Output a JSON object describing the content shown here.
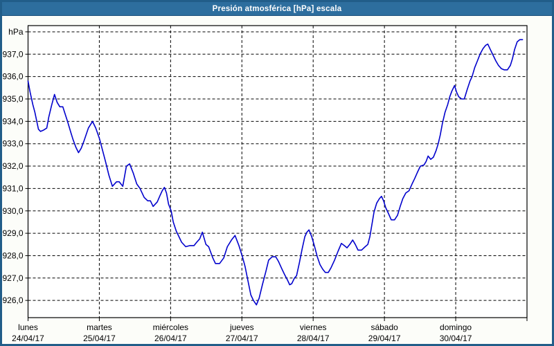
{
  "window": {
    "title": "Presión atmosférica [hPa] escala"
  },
  "colors": {
    "titlebar_bg": "#2d6e9e",
    "titlebar_text": "#ffffff",
    "window_border": "#215d89",
    "content_bg": "#fcfdf9",
    "plot_bg": "#ffffff",
    "axis": "#000000",
    "grid": "#000000",
    "line": "#0000cc",
    "label_text": "#000000"
  },
  "chart_data": {
    "type": "line",
    "title": "Presión atmosférica [hPa] escala",
    "legend": "none",
    "grid": "dashed",
    "y_axis": {
      "unit_label": "hPa",
      "tick_labels": [
        "937,0",
        "936,0",
        "935,0",
        "934,0",
        "933,0",
        "932,0",
        "931,0",
        "930,0",
        "929,0",
        "928,0",
        "927,0",
        "926,0"
      ],
      "tick_values": [
        937,
        936,
        935,
        934,
        933,
        932,
        931,
        930,
        929,
        928,
        927,
        926
      ],
      "top_gridline_value": 938,
      "ylim": [
        925.2,
        938.3
      ]
    },
    "x_axis": {
      "hours_span": 168,
      "tick_every_hours": 24,
      "days": [
        {
          "name": "lunes",
          "date": "24/04/17"
        },
        {
          "name": "martes",
          "date": "25/04/17"
        },
        {
          "name": "miércoles",
          "date": "26/04/17"
        },
        {
          "name": "jueves",
          "date": "27/04/17"
        },
        {
          "name": "viernes",
          "date": "28/04/17"
        },
        {
          "name": "sábado",
          "date": "29/04/17"
        },
        {
          "name": "domingo",
          "date": "30/04/17"
        }
      ]
    },
    "series": [
      {
        "name": "Presión atmosférica [hPa]",
        "color": "#0000cc",
        "points": [
          [
            0,
            935.8
          ],
          [
            0.7,
            935.3
          ],
          [
            1.6,
            934.75
          ],
          [
            2.3,
            934.4
          ],
          [
            3.5,
            933.65
          ],
          [
            4.2,
            933.55
          ],
          [
            5.1,
            933.6
          ],
          [
            6.3,
            933.7
          ],
          [
            7,
            934.2
          ],
          [
            7.9,
            934.7
          ],
          [
            8.9,
            935.2
          ],
          [
            9.8,
            934.85
          ],
          [
            10.7,
            934.65
          ],
          [
            11.7,
            934.65
          ],
          [
            12.3,
            934.4
          ],
          [
            13.3,
            934
          ],
          [
            14.4,
            933.5
          ],
          [
            15.1,
            933.2
          ],
          [
            16.1,
            932.85
          ],
          [
            17,
            932.6
          ],
          [
            17.9,
            932.8
          ],
          [
            18.9,
            933.15
          ],
          [
            20.3,
            933.7
          ],
          [
            21.7,
            934
          ],
          [
            22.8,
            933.7
          ],
          [
            24,
            933.25
          ],
          [
            24.9,
            932.8
          ],
          [
            26.1,
            932.2
          ],
          [
            27.2,
            931.6
          ],
          [
            28.4,
            931.1
          ],
          [
            29.8,
            931.3
          ],
          [
            30.7,
            931.3
          ],
          [
            31.9,
            931.1
          ],
          [
            33.1,
            932
          ],
          [
            34.2,
            932.1
          ],
          [
            35.4,
            931.7
          ],
          [
            36.6,
            931.2
          ],
          [
            37.7,
            931
          ],
          [
            39.1,
            930.6
          ],
          [
            40.3,
            930.45
          ],
          [
            41.2,
            930.45
          ],
          [
            42.1,
            930.2
          ],
          [
            43.5,
            930.4
          ],
          [
            44.5,
            930.7
          ],
          [
            45.2,
            930.9
          ],
          [
            45.9,
            931.05
          ],
          [
            46.6,
            930.8
          ],
          [
            47.3,
            930.3
          ],
          [
            48.2,
            930
          ],
          [
            48.9,
            929.5
          ],
          [
            49.9,
            929.1
          ],
          [
            50.8,
            928.85
          ],
          [
            51.7,
            928.6
          ],
          [
            53.1,
            928.4
          ],
          [
            54.5,
            928.45
          ],
          [
            55.9,
            928.45
          ],
          [
            56.8,
            928.6
          ],
          [
            57.8,
            928.75
          ],
          [
            58.7,
            929.05
          ],
          [
            59.9,
            928.5
          ],
          [
            60.8,
            928.4
          ],
          [
            62.2,
            927.9
          ],
          [
            63.1,
            927.65
          ],
          [
            64.5,
            927.65
          ],
          [
            65.9,
            927.9
          ],
          [
            67.1,
            928.4
          ],
          [
            68.5,
            928.7
          ],
          [
            69.7,
            928.9
          ],
          [
            71,
            928.45
          ],
          [
            72.2,
            927.95
          ],
          [
            73.1,
            927.5
          ],
          [
            74,
            926.9
          ],
          [
            75,
            926.25
          ],
          [
            75.9,
            926
          ],
          [
            76.9,
            925.8
          ],
          [
            77.8,
            926.1
          ],
          [
            78.9,
            926.7
          ],
          [
            80.1,
            927.3
          ],
          [
            81,
            927.8
          ],
          [
            82.2,
            927.95
          ],
          [
            83.4,
            927.95
          ],
          [
            84.3,
            927.75
          ],
          [
            85.5,
            927.4
          ],
          [
            86.4,
            927.15
          ],
          [
            87.4,
            926.9
          ],
          [
            88.1,
            926.7
          ],
          [
            88.8,
            926.75
          ],
          [
            89.7,
            927
          ],
          [
            90.4,
            927.1
          ],
          [
            91.3,
            927.65
          ],
          [
            92.3,
            928.3
          ],
          [
            93.2,
            928.85
          ],
          [
            93.9,
            929.05
          ],
          [
            94.6,
            929.15
          ],
          [
            95.5,
            928.85
          ],
          [
            96.4,
            928.45
          ],
          [
            97.4,
            927.95
          ],
          [
            98.3,
            927.6
          ],
          [
            99.2,
            927.4
          ],
          [
            100.1,
            927.25
          ],
          [
            101.1,
            927.25
          ],
          [
            102,
            927.45
          ],
          [
            103.2,
            927.8
          ],
          [
            104.4,
            928.2
          ],
          [
            105.5,
            928.55
          ],
          [
            106.5,
            928.45
          ],
          [
            107.4,
            928.35
          ],
          [
            108.3,
            928.5
          ],
          [
            109.3,
            928.7
          ],
          [
            110.2,
            928.5
          ],
          [
            111.1,
            928.25
          ],
          [
            112.3,
            928.25
          ],
          [
            113.5,
            928.4
          ],
          [
            114.4,
            928.5
          ],
          [
            115.1,
            928.85
          ],
          [
            115.8,
            929.4
          ],
          [
            116.5,
            929.95
          ],
          [
            117.4,
            930.35
          ],
          [
            118.3,
            930.55
          ],
          [
            119,
            930.65
          ],
          [
            119.7,
            930.45
          ],
          [
            120.4,
            930.15
          ],
          [
            121.3,
            929.9
          ],
          [
            122.3,
            929.6
          ],
          [
            123.4,
            929.6
          ],
          [
            124.4,
            929.8
          ],
          [
            125.3,
            930.2
          ],
          [
            126.2,
            930.55
          ],
          [
            127.2,
            930.8
          ],
          [
            128.3,
            930.9
          ],
          [
            129.3,
            931.2
          ],
          [
            130.2,
            931.45
          ],
          [
            131.2,
            931.75
          ],
          [
            132.1,
            932
          ],
          [
            133.3,
            932.05
          ],
          [
            134,
            932.2
          ],
          [
            134.7,
            932.45
          ],
          [
            135.6,
            932.3
          ],
          [
            136.5,
            932.4
          ],
          [
            137.4,
            932.7
          ],
          [
            138.1,
            933
          ],
          [
            138.8,
            933.4
          ],
          [
            139.5,
            933.9
          ],
          [
            140.4,
            934.4
          ],
          [
            141.3,
            934.75
          ],
          [
            142,
            935.1
          ],
          [
            142.7,
            935.35
          ],
          [
            143.6,
            935.6
          ],
          [
            144.3,
            935.3
          ],
          [
            145,
            935.1
          ],
          [
            146,
            935
          ],
          [
            146.9,
            935
          ],
          [
            147.8,
            935.4
          ],
          [
            148.8,
            935.8
          ],
          [
            149.5,
            936
          ],
          [
            150.4,
            936.4
          ],
          [
            151.3,
            936.7
          ],
          [
            152.2,
            937
          ],
          [
            153.2,
            937.25
          ],
          [
            154.1,
            937.4
          ],
          [
            154.8,
            937.45
          ],
          [
            155.7,
            937.2
          ],
          [
            156.6,
            936.95
          ],
          [
            157.5,
            936.7
          ],
          [
            158.4,
            936.5
          ],
          [
            159.4,
            936.35
          ],
          [
            160.3,
            936.3
          ],
          [
            161.4,
            936.3
          ],
          [
            162.4,
            936.5
          ],
          [
            163.1,
            936.8
          ],
          [
            163.8,
            937.2
          ],
          [
            164.7,
            937.55
          ],
          [
            165.6,
            937.65
          ],
          [
            166.5,
            937.65
          ]
        ]
      }
    ]
  }
}
